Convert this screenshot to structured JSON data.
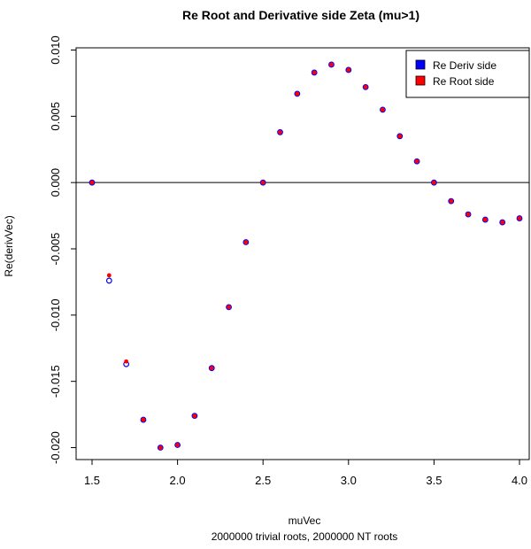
{
  "chart_data": {
    "type": "scatter",
    "title": "Re Root and Derivative side Zeta (mu>1)",
    "xlabel": "muVec",
    "subtitle": "2000000 trivial roots, 2000000 NT roots",
    "ylabel": "Re(derivVec)",
    "xlim": [
      1.5,
      4.0
    ],
    "ylim": [
      -0.0205,
      0.0101
    ],
    "x_ticks": [
      1.5,
      2.0,
      2.5,
      3.0,
      3.5,
      4.0
    ],
    "x_tick_labels": [
      "1.5",
      "2.0",
      "2.5",
      "3.0",
      "3.5",
      "4.0"
    ],
    "y_ticks": [
      -0.02,
      -0.015,
      -0.01,
      -0.005,
      0.0,
      0.005,
      0.01
    ],
    "y_tick_labels": [
      "-0.020",
      "-0.015",
      "-0.010",
      "-0.005",
      "0.000",
      "0.005",
      "0.010"
    ],
    "hline": 0,
    "grid": false,
    "legend": {
      "position": "top-right"
    },
    "x": [
      1.5,
      1.6,
      1.7,
      1.8,
      1.9,
      2.0,
      2.1,
      2.2,
      2.3,
      2.4,
      2.5,
      2.6,
      2.7,
      2.8,
      2.9,
      3.0,
      3.1,
      3.2,
      3.3,
      3.4,
      3.5,
      3.6,
      3.7,
      3.8,
      3.9,
      4.0
    ],
    "series": [
      {
        "name": "Re Deriv side",
        "color": "#0000ff",
        "marker": "open-circle",
        "values": [
          0.0,
          -0.0074,
          -0.0137,
          -0.0179,
          -0.02,
          -0.0198,
          -0.0176,
          -0.014,
          -0.0094,
          -0.0045,
          0.0,
          0.0038,
          0.0067,
          0.0083,
          0.0089,
          0.0085,
          0.0072,
          0.0055,
          0.0035,
          0.0016,
          0.0,
          -0.0014,
          -0.0024,
          -0.0028,
          -0.003,
          -0.0027
        ]
      },
      {
        "name": "Re Root side",
        "color": "#ff0000",
        "marker": "filled-circle",
        "values": [
          0.0,
          -0.007,
          -0.0135,
          -0.0179,
          -0.02,
          -0.0198,
          -0.0176,
          -0.014,
          -0.0094,
          -0.0045,
          0.0,
          0.0038,
          0.0067,
          0.0083,
          0.0089,
          0.0085,
          0.0072,
          0.0055,
          0.0035,
          0.0016,
          0.0,
          -0.0014,
          -0.0024,
          -0.0028,
          -0.003,
          -0.0027
        ]
      }
    ]
  }
}
